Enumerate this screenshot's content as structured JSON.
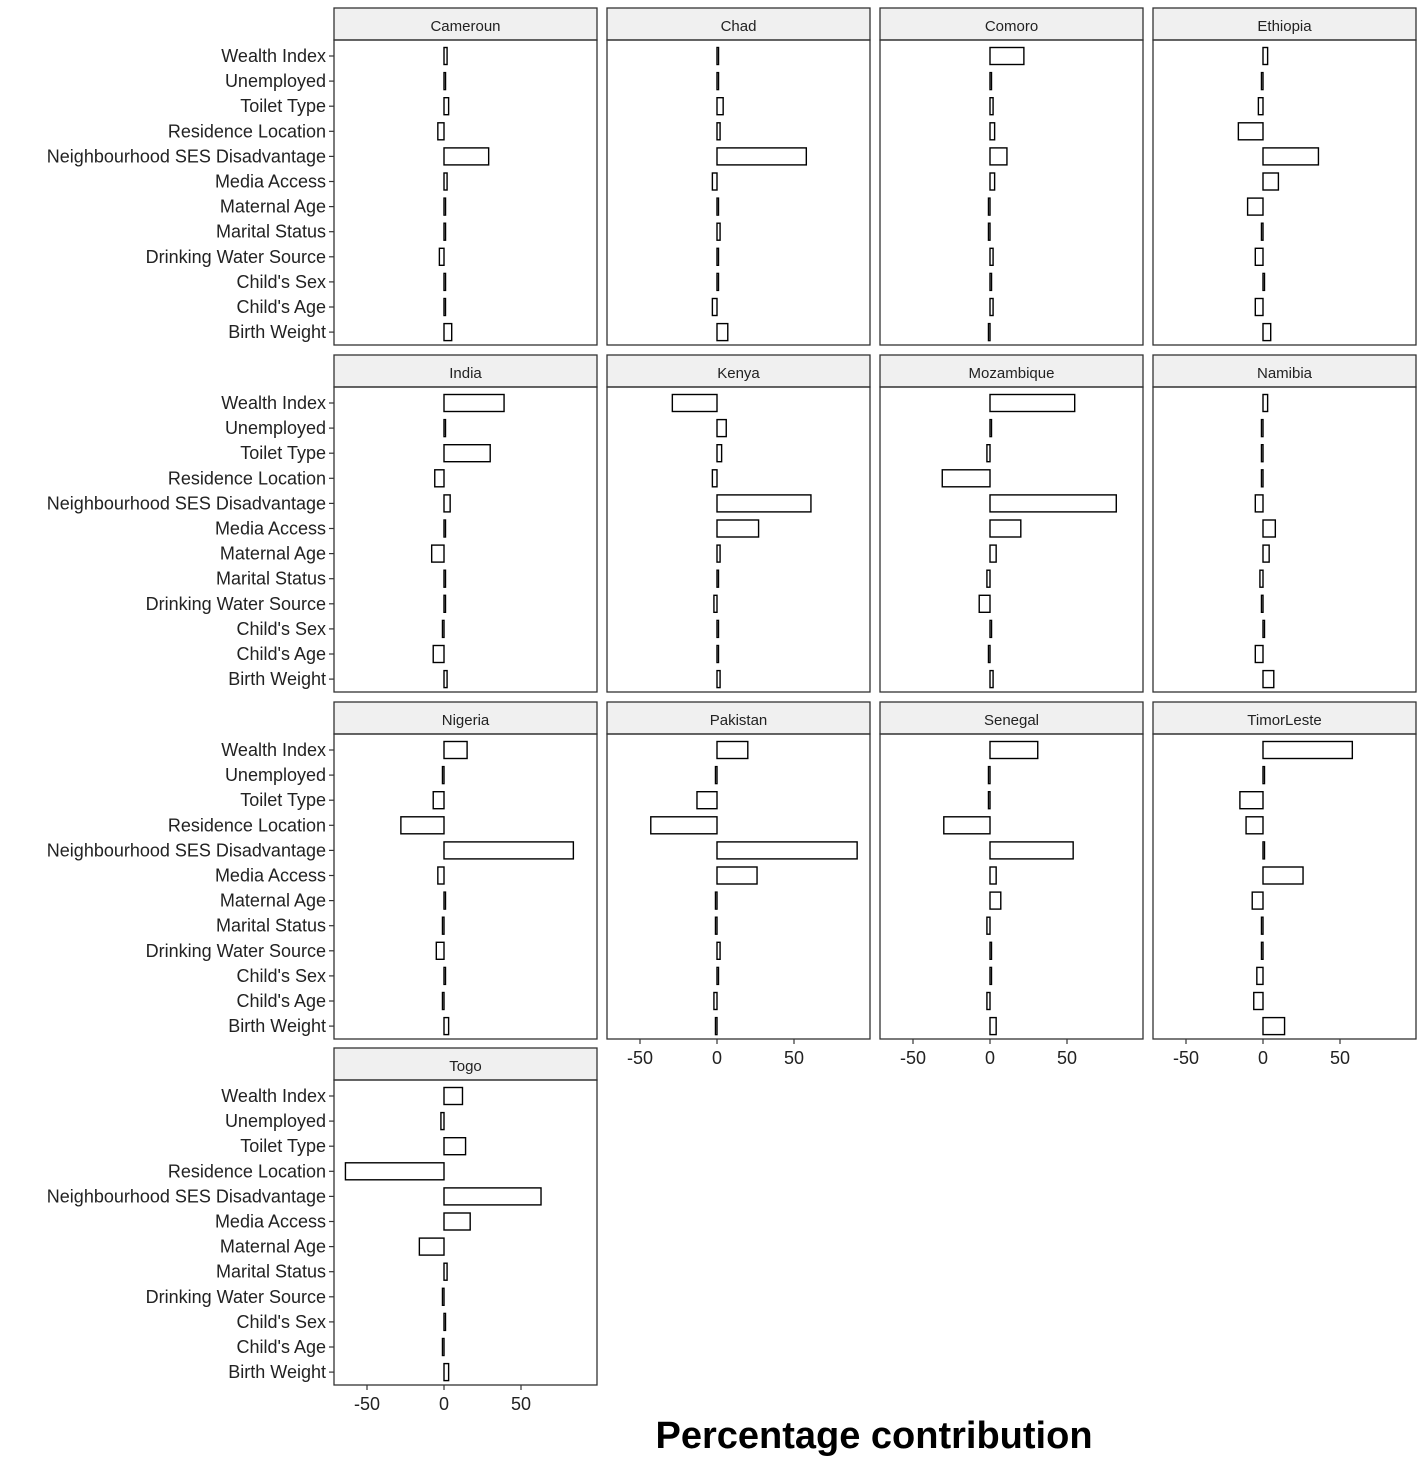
{
  "chart_data": {
    "type": "bar",
    "orientation": "horizontal",
    "layout": "faceted small multiples (4 columns)",
    "xlabel": "Percentage contribution",
    "xlim": [
      -70,
      93
    ],
    "xticks": [
      -50,
      0,
      50
    ],
    "grid": false,
    "categories": [
      "Wealth Index",
      "Unemployed",
      "Toilet Type",
      "Residence Location",
      "Neighbourhood SES Disadvantage",
      "Media Access",
      "Maternal Age",
      "Marital Status",
      "Drinking Water Source",
      "Child's Sex",
      "Child's Age",
      "Birth Weight"
    ],
    "panels": [
      {
        "name": "Cameroun",
        "values": [
          2,
          1,
          3,
          -4,
          29,
          2,
          1,
          1,
          -3,
          1,
          0.3,
          5
        ]
      },
      {
        "name": "Chad",
        "values": [
          1,
          1,
          4,
          2,
          58,
          -3,
          0.3,
          2,
          0.3,
          0.3,
          -3,
          7
        ]
      },
      {
        "name": "Comoro",
        "values": [
          22,
          0.3,
          2,
          3,
          11,
          3,
          -1,
          -1,
          2,
          1,
          2,
          -1
        ]
      },
      {
        "name": "Ethiopia",
        "values": [
          3,
          -1,
          -3,
          -16,
          36,
          10,
          -10,
          -1,
          -5,
          0.3,
          -5,
          5
        ]
      },
      {
        "name": "India",
        "values": [
          39,
          0.3,
          30,
          -6,
          4,
          0.3,
          -8,
          0.3,
          0.3,
          -1,
          -7,
          2
        ]
      },
      {
        "name": "Kenya",
        "values": [
          -29,
          6,
          3,
          -3,
          61,
          27,
          2,
          0.3,
          -2,
          0.3,
          0.3,
          2
        ]
      },
      {
        "name": "Mozambique",
        "values": [
          55,
          0.3,
          -2,
          -31,
          82,
          20,
          4,
          -2,
          -7,
          1,
          -1,
          2
        ]
      },
      {
        "name": "Namibia",
        "values": [
          3,
          -1,
          -1,
          -1,
          -5,
          8,
          4,
          -2,
          -1,
          0.3,
          -5,
          7
        ]
      },
      {
        "name": "Nigeria",
        "values": [
          15,
          -1,
          -7,
          -28,
          84,
          -4,
          0.3,
          -1,
          -5,
          0.3,
          -1,
          3
        ]
      },
      {
        "name": "Pakistan",
        "values": [
          20,
          -1,
          -13,
          -43,
          91,
          26,
          -1,
          -1,
          2,
          0.3,
          -2,
          -1
        ]
      },
      {
        "name": "Senegal",
        "values": [
          31,
          -1,
          -1,
          -30,
          54,
          4,
          7,
          -2,
          0.3,
          0.3,
          -2,
          4
        ]
      },
      {
        "name": "TimorLeste",
        "values": [
          58,
          0.3,
          -15,
          -11,
          0.3,
          26,
          -7,
          -1,
          -1,
          -4,
          -6,
          14
        ]
      },
      {
        "name": "Togo",
        "values": [
          12,
          -2,
          14,
          -64,
          63,
          17,
          -16,
          2,
          -1,
          0.3,
          -1,
          3
        ]
      }
    ]
  }
}
